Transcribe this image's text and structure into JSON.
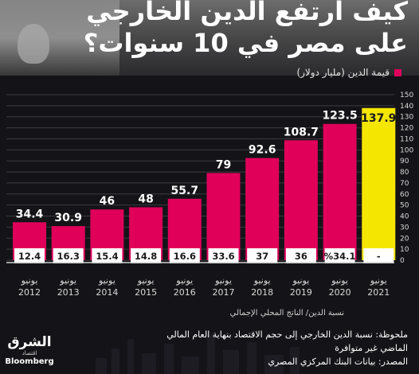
{
  "header": {
    "title_line1": "كيف ارتفع الدين الخارجي",
    "title_line2": "على مصر في 10 سنوات؟"
  },
  "legend": {
    "label": "قيمة الدين (مليار دولار)",
    "color": "#e0005a"
  },
  "ratio_axis_label": "نسبة الدين/ الناتج المحلي الإجمالي",
  "notes": {
    "note": "ملحوظة: نسبة الدين الخارجي إلى حجم الاقتصاد بنهاية العام المالي الماضي غير متوافرة",
    "source": "المصدر: بيانات البنك المركزي المصري"
  },
  "logo": {
    "name": "الشرق",
    "sub": "اقتصاد",
    "partner": "Bloomberg"
  },
  "colors": {
    "bar": "#e0005a",
    "highlight": "#f5e600",
    "background": "#141418",
    "grid": "#3a3a40"
  },
  "chart_data": {
    "type": "bar",
    "categories": [
      "يونيو 2012",
      "يونيو 2013",
      "يونيو 2014",
      "يونيو 2015",
      "يونيو 2016",
      "يونيو 2017",
      "يونيو 2018",
      "يونيو 2019",
      "يونيو 2020",
      "يونيو 2021"
    ],
    "category_month": "يونيو",
    "category_years": [
      "2012",
      "2013",
      "2014",
      "2015",
      "2016",
      "2017",
      "2018",
      "2019",
      "2020",
      "2021"
    ],
    "values": [
      34.4,
      30.9,
      46,
      48,
      55.7,
      79,
      92.6,
      108.7,
      123.5,
      137.9
    ],
    "value_labels": [
      "34.4",
      "30.9",
      "46",
      "48",
      "55.7",
      "79",
      "92.6",
      "108.7",
      "123.5",
      "137.9"
    ],
    "ratio_labels": [
      "12.4",
      "16.3",
      "15.4",
      "14.8",
      "16.6",
      "33.6",
      "37",
      "36",
      "%34.1",
      "-"
    ],
    "highlight_index": 9,
    "ylim": [
      0,
      150
    ],
    "yticks": [
      0,
      10,
      20,
      30,
      40,
      50,
      60,
      70,
      80,
      90,
      100,
      110,
      120,
      130,
      140,
      150
    ],
    "ytick_labels": [
      "0",
      "10",
      "20",
      "30",
      "40",
      "50",
      "60",
      "70",
      "80",
      "90",
      "100",
      "110",
      "120",
      "130",
      "140",
      "150"
    ],
    "y_axis_side": "right",
    "grid": true
  }
}
